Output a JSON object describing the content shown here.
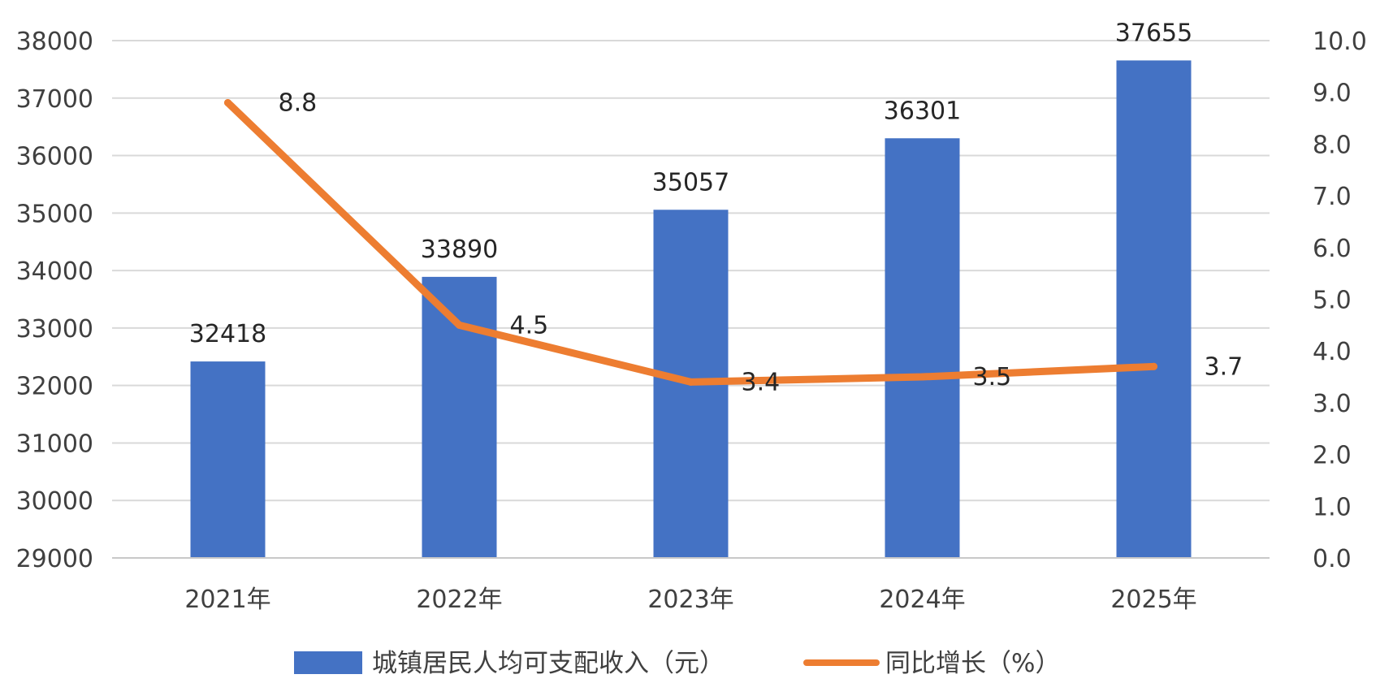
{
  "chart_data": {
    "type": "bar",
    "categories": [
      "2021年",
      "2022年",
      "2023年",
      "2024年",
      "2025年"
    ],
    "series": [
      {
        "name": "城镇居民人均可支配收入（元）",
        "type": "bar",
        "axis": "left",
        "color": "#4472C4",
        "values": [
          32418,
          33890,
          35057,
          36301,
          37655
        ]
      },
      {
        "name": "同比增长（%）",
        "type": "line",
        "axis": "right",
        "color": "#ED7D31",
        "values": [
          8.8,
          4.5,
          3.4,
          3.5,
          3.7
        ]
      }
    ],
    "y_left": {
      "min": 29000,
      "max": 38000,
      "step": 1000,
      "ticks": [
        "29000",
        "30000",
        "31000",
        "32000",
        "33000",
        "34000",
        "35000",
        "36000",
        "37000",
        "38000"
      ]
    },
    "y_right": {
      "min": 0,
      "max": 10,
      "step": 1,
      "ticks": [
        "0.0",
        "1.0",
        "2.0",
        "3.0",
        "4.0",
        "5.0",
        "6.0",
        "7.0",
        "8.0",
        "9.0",
        "10.0"
      ]
    },
    "bar_labels": [
      "32418",
      "33890",
      "35057",
      "36301",
      "37655"
    ],
    "line_labels": [
      "8.8",
      "4.5",
      "3.4",
      "3.5",
      "3.7"
    ],
    "grid": true,
    "legend_position": "bottom"
  }
}
